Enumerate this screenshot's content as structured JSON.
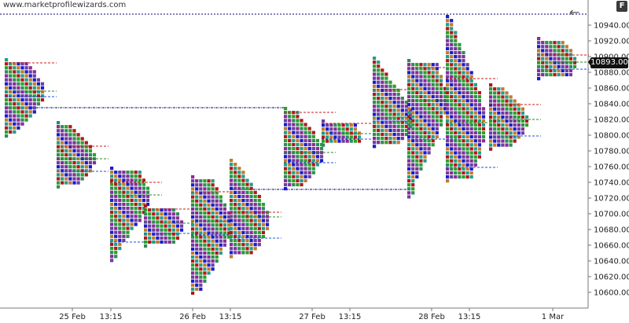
{
  "watermark": "www.marketprofilewizards.com",
  "fullscreen_label": "F",
  "back_icon": "back-arrow-icon",
  "colors": {
    "tpo_palette": [
      "#1f9e8a",
      "#2e8b57",
      "#1a1ad0",
      "#b01818",
      "#8a2a9a",
      "#c27a2a",
      "#2aa02a",
      "#6b3fa0"
    ],
    "poc": "#228b22",
    "vah": "#d01818",
    "val": "#1e50d8",
    "session_line": "#00007a"
  },
  "chart_data": {
    "type": "market-profile",
    "y_ticks": [
      "10600.00",
      "10620.00",
      "10640.00",
      "10660.00",
      "10680.00",
      "10700.00",
      "10720.00",
      "10740.00",
      "10760.00",
      "10780.00",
      "10800.00",
      "10820.00",
      "10840.00",
      "10860.00",
      "10880.00",
      "10900.00",
      "10920.00",
      "10940.00"
    ],
    "x_ticks": [
      "25 Feb",
      "13:15",
      "26 Feb",
      "13:15",
      "27 Feb",
      "13:15",
      "28 Feb",
      "13:15",
      "1 Mar"
    ],
    "last_price": "10893.00",
    "ylim": [
      10585,
      10955
    ],
    "grid": false,
    "profiles": [
      {
        "low": 10796,
        "high": 10898,
        "poc": 10856,
        "vah": 10892,
        "val": 10849
      },
      {
        "low": 10736,
        "high": 10818,
        "poc": 10770,
        "vah": 10786,
        "val": 10754
      },
      {
        "low": 10640,
        "high": 10760,
        "poc": 10724,
        "vah": 10740,
        "val": 10664
      },
      {
        "low": 10659,
        "high": 10712,
        "poc": 10688,
        "vah": 10706,
        "val": 10675
      },
      {
        "low": 10597,
        "high": 10749,
        "poc": 10690,
        "vah": 10728,
        "val": 10673
      },
      {
        "low": 10644,
        "high": 10770,
        "poc": 10696,
        "vah": 10702,
        "val": 10669
      },
      {
        "low": 10731,
        "high": 10836,
        "poc": 10778,
        "vah": 10829,
        "val": 10765
      },
      {
        "low": 10788,
        "high": 10820,
        "poc": 10802,
        "vah": 10815,
        "val": 10795
      },
      {
        "low": 10786,
        "high": 10900,
        "poc": 10823,
        "vah": 10858,
        "val": 10818
      },
      {
        "low": 10720,
        "high": 10897,
        "poc": 10844,
        "vah": 10886,
        "val": 10795
      },
      {
        "low": 10741,
        "high": 10953,
        "poc": 10816,
        "vah": 10872,
        "val": 10759
      },
      {
        "low": 10783,
        "high": 10866,
        "poc": 10820,
        "vah": 10839,
        "val": 10799
      },
      {
        "low": 10869,
        "high": 10925,
        "poc": 10893,
        "vah": 10902,
        "val": 10884
      }
    ]
  }
}
